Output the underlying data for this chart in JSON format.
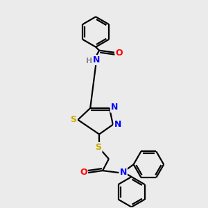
{
  "bg_color": "#ebebeb",
  "bond_color": "#000000",
  "atom_colors": {
    "N": "#0000ff",
    "O": "#ff0000",
    "S": "#ccaa00",
    "H": "#888888",
    "C": "#000000"
  },
  "figsize": [
    3.0,
    3.0
  ],
  "dpi": 100
}
